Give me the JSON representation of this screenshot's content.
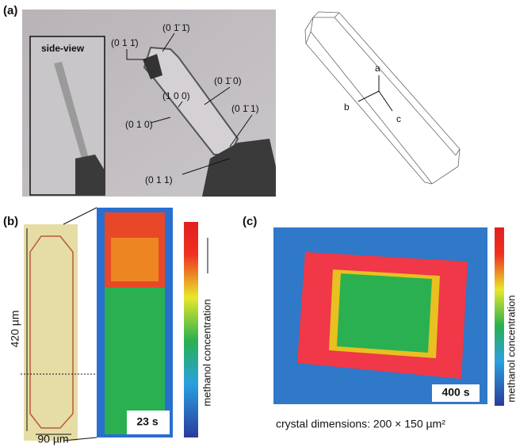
{
  "panels": {
    "a": {
      "label": "(a)",
      "inset_label": "side-view",
      "facets": [
        "(0 1 1̄)",
        "(0 1̄ 1̄)",
        "(1 0 0)",
        "(0 1̄ 0)",
        "(0 1 0)",
        "(0 1̄ 1)",
        "(0 1 1)"
      ],
      "axes": [
        "a",
        "b",
        "c"
      ]
    },
    "b": {
      "label": "(b)",
      "length": "420 µm",
      "width": "90 µm",
      "time": "23 s",
      "colorbar_label": "methanol concentration"
    },
    "c": {
      "label": "(c)",
      "time": "400 s",
      "colorbar_label": "methanol concentration",
      "caption": "crystal dimensions:  200 × 150 µm²"
    }
  }
}
